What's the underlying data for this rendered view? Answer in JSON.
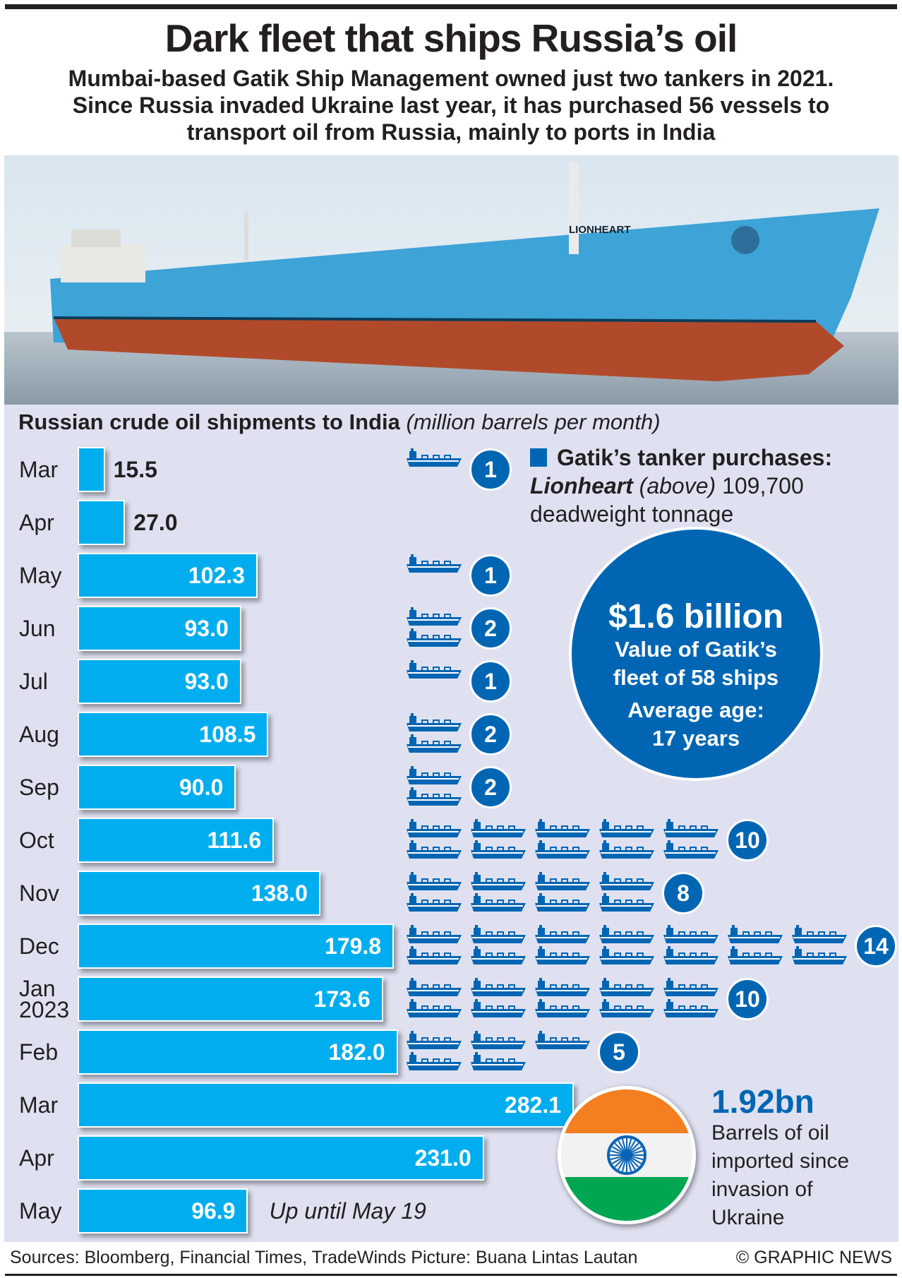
{
  "title": "Dark fleet that ships Russia’s oil",
  "subtitle": [
    "Mumbai-based Gatik Ship Management owned just two tankers in 2021.",
    "Since Russia invaded Ukraine last year, it has purchased 56 vessels to",
    "transport oil from Russia, mainly to ports in India"
  ],
  "photo": {
    "ship_name": "LIONHEART"
  },
  "chart_data": {
    "type": "bar",
    "title": "Russian crude oil shipments to India",
    "units": "(million barrels per month)",
    "categories": [
      "Mar",
      "Apr",
      "May",
      "Jun",
      "Jul",
      "Aug",
      "Sep",
      "Oct",
      "Nov",
      "Dec",
      "Jan 2023",
      "Feb",
      "Mar",
      "Apr",
      "May"
    ],
    "values": [
      15.5,
      27.0,
      102.3,
      93.0,
      93.0,
      108.5,
      90.0,
      111.6,
      138.0,
      179.8,
      173.6,
      182.0,
      282.1,
      231.0,
      96.9
    ],
    "labels": [
      "15.5",
      "27.0",
      "102.3",
      "93.0",
      "93.0",
      "108.5",
      "90.0",
      "111.6",
      "138.0",
      "179.8",
      "173.6",
      "182.0",
      "282.1",
      "231.0",
      "96.9"
    ],
    "tanker_purchases": [
      1,
      null,
      1,
      2,
      1,
      2,
      2,
      10,
      8,
      14,
      10,
      5,
      null,
      null,
      null
    ],
    "annotation": "Up until May 19",
    "colors": {
      "bar": "#00aeef",
      "badge": "#0066b3"
    }
  },
  "legend": {
    "title": "Gatik’s tanker purchases:",
    "name": "Lionheart",
    "paren": "(above)",
    "tonnage": "109,700",
    "rest": "deadweight tonnage"
  },
  "fleet": {
    "value": "$1.6 billion",
    "line1": "Value of Gatik’s",
    "line2": "fleet of 58 ships",
    "age1": "Average age:",
    "age2": "17 years"
  },
  "imports": {
    "value": "1.92bn",
    "text": [
      "Barrels of oil",
      "imported since",
      "invasion of",
      "Ukraine"
    ]
  },
  "footer": {
    "sources": "Sources: Bloomberg, Financial Times, TradeWinds  Picture: Buana Lintas Lautan",
    "credit": "© GRAPHIC NEWS"
  }
}
